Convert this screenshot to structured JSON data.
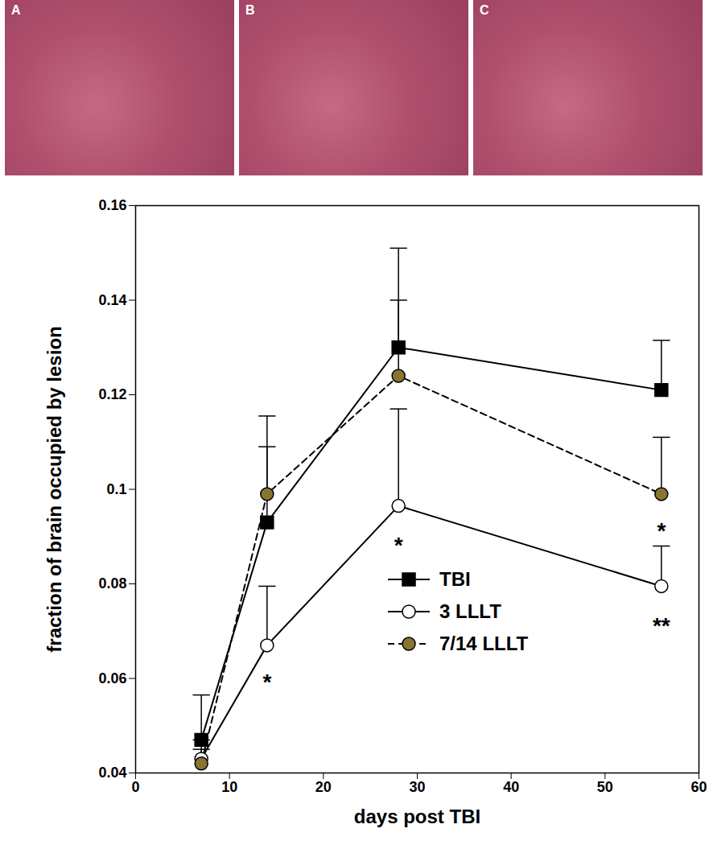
{
  "panels": [
    "A",
    "B",
    "C"
  ],
  "chart_data": {
    "type": "line",
    "x_label": "days post TBI",
    "y_label": "fraction of brain occupied by lesion",
    "xlim": [
      0,
      60
    ],
    "xticks": [
      0,
      10,
      20,
      30,
      40,
      50,
      60
    ],
    "ylim": [
      0.04,
      0.16
    ],
    "yticks": [
      0.04,
      0.06,
      0.08,
      0.1,
      0.12,
      0.14,
      0.16
    ],
    "legend": "lower right",
    "x": [
      7,
      14,
      28,
      56
    ],
    "series": [
      {
        "name": "TBI",
        "color": "#000000",
        "marker": "square",
        "line_style": "solid",
        "values": [
          0.047,
          0.093,
          0.13,
          0.121
        ],
        "errors": [
          0.0095,
          0.016,
          0.021,
          0.0105
        ]
      },
      {
        "name": "3 LLLT",
        "color": "#ffffff",
        "marker": "circle",
        "line_style": "solid",
        "values": [
          0.043,
          0.067,
          0.0965,
          0.0795
        ],
        "errors": [
          0.004,
          0.0125,
          0.0205,
          0.0085
        ]
      },
      {
        "name": "7/14 LLLT",
        "color": "#8b7330",
        "marker": "circle",
        "line_style": "dashed",
        "values": [
          0.042,
          0.099,
          0.124,
          0.099
        ],
        "errors": [
          0.003,
          0.0165,
          0.016,
          0.012
        ]
      }
    ],
    "annotations": [
      {
        "text": "*",
        "x": 14,
        "y": 0.061
      },
      {
        "text": "*",
        "x": 28,
        "y": 0.09
      },
      {
        "text": "**",
        "x": 56,
        "y": 0.073
      },
      {
        "text": "*",
        "x": 56,
        "y": 0.093
      }
    ]
  }
}
